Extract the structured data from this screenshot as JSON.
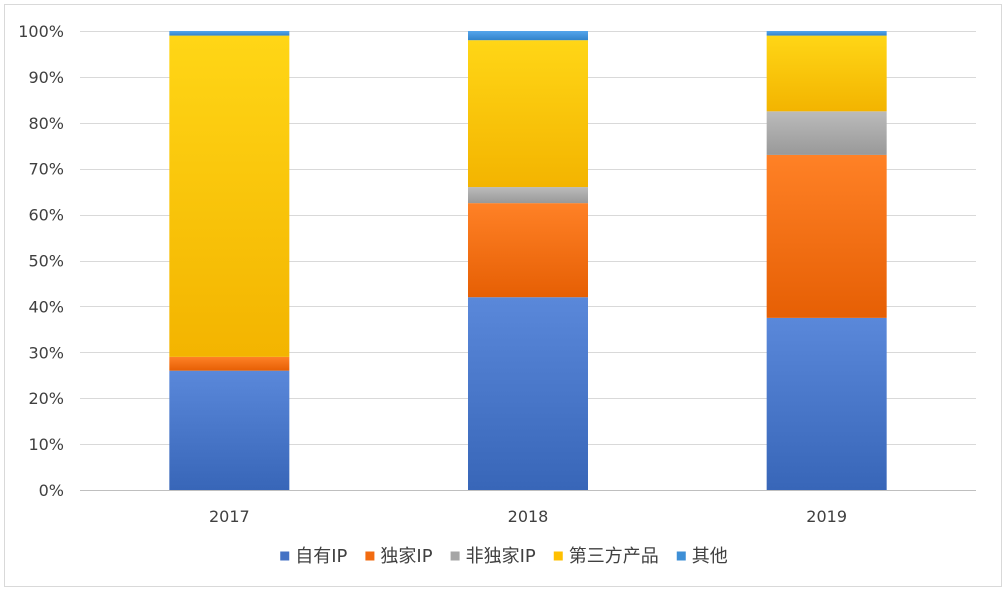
{
  "chart_data": {
    "type": "bar",
    "stacked": true,
    "percent": true,
    "title": "",
    "xlabel": "",
    "ylabel": "",
    "categories": [
      "2017",
      "2018",
      "2019"
    ],
    "ylim": [
      0,
      100
    ],
    "yticks": [
      "0%",
      "10%",
      "20%",
      "30%",
      "40%",
      "50%",
      "60%",
      "70%",
      "80%",
      "90%",
      "100%"
    ],
    "grid": true,
    "legend_position": "bottom",
    "series": [
      {
        "name": "自有IP",
        "color": "#4472C4",
        "values": [
          26,
          42,
          37.5
        ]
      },
      {
        "name": "独家IP",
        "color": "#F26B10",
        "values": [
          3,
          20.5,
          35.5
        ]
      },
      {
        "name": "非独家IP",
        "color": "#A5A5A5",
        "values": [
          0,
          3.5,
          9.5
        ]
      },
      {
        "name": "第三方产品",
        "color": "#FFC000",
        "values": [
          70,
          32,
          16.5
        ]
      },
      {
        "name": "其他",
        "color": "#3E8FD6",
        "values": [
          1,
          2,
          1
        ]
      }
    ]
  }
}
